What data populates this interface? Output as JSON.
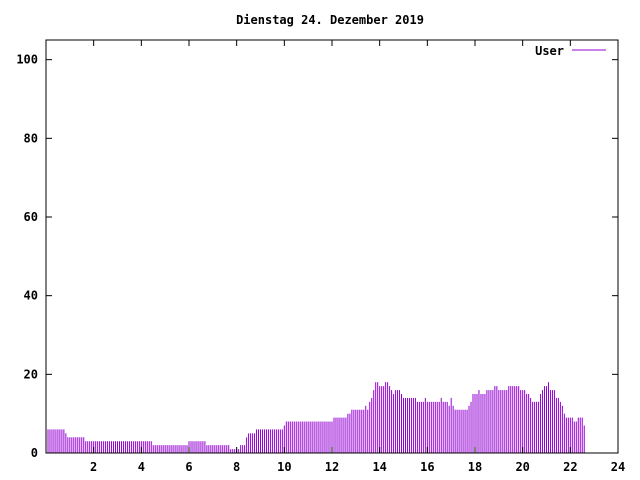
{
  "title": "Dienstag 24. Dezember 2019",
  "colors": {
    "series": "#9400d3",
    "axis": "#000000",
    "background": "#ffffff"
  },
  "chart_data": {
    "type": "bar",
    "title": "Dienstag 24. Dezember 2019",
    "xlabel": "",
    "ylabel": "",
    "xlim": [
      0,
      24
    ],
    "ylim": [
      0,
      105
    ],
    "grid": false,
    "legend": "top-right",
    "x_ticks": [
      2,
      4,
      6,
      8,
      10,
      12,
      14,
      16,
      18,
      20,
      22,
      24
    ],
    "y_ticks": [
      0,
      20,
      40,
      60,
      80,
      100
    ],
    "series": [
      {
        "name": "User",
        "interval_minutes": 5,
        "values": [
          6,
          6,
          6,
          6,
          6,
          6,
          6,
          6,
          6,
          6,
          5,
          4,
          4,
          4,
          4,
          4,
          4,
          4,
          4,
          4,
          3,
          3,
          3,
          3,
          3,
          3,
          3,
          3,
          3,
          3,
          3,
          3,
          3,
          3,
          3,
          3,
          3,
          3,
          3,
          3,
          3,
          3,
          3,
          3,
          3,
          3,
          3,
          3,
          3,
          3,
          3,
          3,
          3,
          3,
          2,
          2,
          2,
          2,
          2,
          2,
          2,
          2,
          2,
          2,
          2,
          2,
          2,
          2,
          2,
          2,
          2,
          2,
          3,
          3,
          3,
          3,
          3,
          3,
          3,
          3,
          3,
          2,
          2,
          2,
          2,
          2,
          2,
          2,
          2,
          2,
          2,
          2,
          2,
          1,
          1,
          1,
          1,
          1,
          2,
          2,
          2,
          4,
          5,
          5,
          5,
          5,
          6,
          6,
          6,
          6,
          6,
          6,
          6,
          6,
          6,
          6,
          6,
          6,
          6,
          6,
          7,
          8,
          8,
          8,
          8,
          8,
          8,
          8,
          8,
          8,
          8,
          8,
          8,
          8,
          8,
          8,
          8,
          8,
          8,
          8,
          8,
          8,
          8,
          8,
          8,
          9,
          9,
          9,
          9,
          9,
          9,
          9,
          10,
          10,
          11,
          11,
          11,
          11,
          11,
          11,
          11,
          12,
          11,
          13,
          14,
          16,
          18,
          18,
          17,
          17,
          17,
          18,
          18,
          17,
          16,
          15,
          16,
          16,
          16,
          15,
          14,
          14,
          14,
          14,
          14,
          14,
          14,
          13,
          13,
          13,
          13,
          14,
          13,
          13,
          13,
          13,
          13,
          13,
          13,
          14,
          13,
          13,
          13,
          12,
          14,
          12,
          11,
          11,
          11,
          11,
          11,
          11,
          11,
          12,
          13,
          15,
          15,
          15,
          16,
          15,
          15,
          15,
          16,
          16,
          16,
          16,
          17,
          17,
          16,
          16,
          16,
          16,
          16,
          17,
          17,
          17,
          17,
          17,
          17,
          16,
          16,
          16,
          15,
          15,
          14,
          13,
          13,
          13,
          13,
          15,
          16,
          17,
          17,
          18,
          16,
          16,
          16,
          14,
          14,
          13,
          12,
          10,
          9,
          9,
          9,
          9,
          8,
          8,
          9,
          9,
          9,
          7
        ]
      }
    ]
  }
}
